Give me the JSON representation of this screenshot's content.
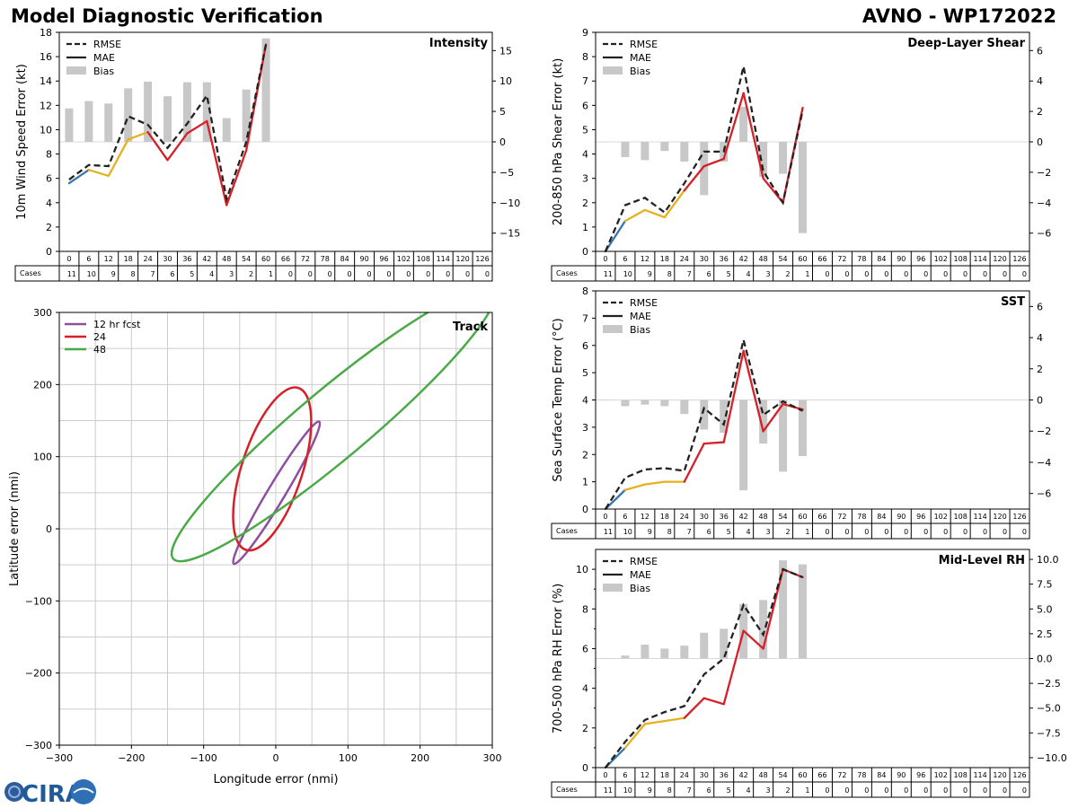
{
  "header": {
    "title": "Model Diagnostic Verification",
    "model_id": "AVNO - WP172022"
  },
  "logo": {
    "text": "CIRA"
  },
  "colors": {
    "blue": "#3777b0",
    "yellow": "#e7b01f",
    "red": "#d62028",
    "rmse": "#222222",
    "bias": "#c8c8c8",
    "purple": "#8e4fa0",
    "green": "#4aaa48",
    "grid": "#cccccc"
  },
  "legend_labels": {
    "rmse": "RMSE",
    "mae": "MAE",
    "bias": "Bias"
  },
  "cases_label": "Cases",
  "forecast_hours": [
    0,
    6,
    12,
    18,
    24,
    30,
    36,
    42,
    48,
    54,
    60,
    66,
    72,
    78,
    84,
    90,
    96,
    102,
    108,
    114,
    120,
    126
  ],
  "cases": [
    11,
    10,
    9,
    8,
    7,
    6,
    5,
    4,
    3,
    2,
    1,
    0,
    0,
    0,
    0,
    0,
    0,
    0,
    0,
    0,
    0,
    0
  ],
  "chart_data": [
    {
      "id": "intensity",
      "type": "line",
      "title": "Intensity",
      "ylabel": "10m Wind Speed Error (kt)",
      "ylim": [
        0,
        18
      ],
      "yticks": [
        0,
        2,
        4,
        6,
        8,
        10,
        12,
        14,
        16,
        18
      ],
      "y2lim": [
        -18,
        18
      ],
      "y2ticks": [
        -15,
        -10,
        -5,
        0,
        5,
        10,
        15
      ],
      "rmse": [
        5.9,
        7.1,
        7.0,
        11.1,
        10.4,
        8.5,
        10.5,
        12.8,
        4.3,
        9.0,
        17.0
      ],
      "mae": [
        5.6,
        6.7,
        6.2,
        9.2,
        9.8,
        7.5,
        9.7,
        10.7,
        3.8,
        8.3,
        17.0
      ],
      "bias": [
        5.5,
        6.7,
        6.3,
        8.8,
        9.9,
        7.5,
        9.8,
        9.8,
        3.9,
        8.6,
        17.0
      ]
    },
    {
      "id": "shear",
      "type": "line",
      "title": "Deep-Layer Shear",
      "ylabel": "200-850 hPa Shear Error (kt)",
      "ylim": [
        0,
        9
      ],
      "yticks": [
        0,
        1,
        2,
        3,
        4,
        5,
        6,
        7,
        8,
        9
      ],
      "y2lim": [
        -7.2,
        7.2
      ],
      "y2ticks": [
        -6,
        -4,
        -2,
        0,
        2,
        4,
        6
      ],
      "rmse": [
        0.0,
        1.9,
        2.2,
        1.6,
        2.8,
        4.1,
        4.1,
        7.6,
        3.3,
        2.0,
        5.8
      ],
      "mae": [
        0.0,
        1.25,
        1.7,
        1.4,
        2.5,
        3.5,
        3.8,
        6.5,
        3.0,
        2.0,
        5.9
      ],
      "bias": [
        0.0,
        -1.0,
        -1.2,
        -0.6,
        -1.3,
        -3.5,
        -1.3,
        2.3,
        -2.3,
        -2.1,
        -6.0
      ]
    },
    {
      "id": "sst",
      "type": "line",
      "title": "SST",
      "ylabel": "Sea Surface Temp Error (°C)",
      "ylim": [
        0,
        8
      ],
      "yticks": [
        0,
        1,
        2,
        3,
        4,
        5,
        6,
        7,
        8
      ],
      "y2lim": [
        -7,
        7
      ],
      "y2ticks": [
        -6,
        -4,
        -2,
        0,
        2,
        4,
        6
      ],
      "rmse": [
        0.0,
        1.15,
        1.45,
        1.5,
        1.4,
        3.7,
        3.1,
        6.2,
        3.45,
        3.95,
        3.6
      ],
      "mae": [
        0.0,
        0.7,
        0.9,
        1.0,
        1.0,
        2.4,
        2.45,
        5.8,
        2.85,
        3.85,
        3.65
      ],
      "bias": [
        0.0,
        -0.4,
        -0.3,
        -0.4,
        -0.9,
        -1.9,
        -2.1,
        -5.8,
        -2.8,
        -4.6,
        -3.6
      ]
    },
    {
      "id": "rh",
      "type": "line",
      "title": "Mid-Level RH",
      "ylabel": "700-500 hPa RH Error (%)",
      "ylim": [
        0,
        11
      ],
      "yticks": [
        0,
        2,
        4,
        6,
        8,
        10
      ],
      "y2lim": [
        -11,
        11
      ],
      "y2ticks": [
        -10,
        -7.5,
        -5,
        -2.5,
        0,
        2.5,
        5,
        7.5,
        10
      ],
      "rmse": [
        0.0,
        1.3,
        2.4,
        2.8,
        3.1,
        4.7,
        5.5,
        8.2,
        6.7,
        10.0,
        9.6
      ],
      "mae": [
        0.0,
        1.0,
        2.2,
        2.35,
        2.5,
        3.5,
        3.2,
        6.9,
        6.0,
        10.0,
        9.6
      ],
      "bias": [
        0.0,
        0.3,
        1.4,
        1.0,
        1.3,
        2.6,
        3.0,
        5.5,
        5.9,
        9.9,
        9.5
      ]
    },
    {
      "id": "track",
      "type": "scatter",
      "title": "Track",
      "xlabel": "Longitude error (nmi)",
      "ylabel": "Latitude error (nmi)",
      "xlim": [
        -300,
        300
      ],
      "ylim": [
        -300,
        300
      ],
      "xticks": [
        -300,
        -200,
        -100,
        0,
        100,
        200,
        300
      ],
      "yticks": [
        -300,
        -200,
        -100,
        0,
        100,
        200,
        300
      ],
      "ellipses": [
        {
          "label": "12 hr fcst",
          "color": "#8e4fa0",
          "cx": 1,
          "cy": 50,
          "rx": 115,
          "ry": 12,
          "angle": 59
        },
        {
          "label": "24",
          "color": "#d62028",
          "cx": -5,
          "cy": 83,
          "rx": 118,
          "ry": 42,
          "angle": 72
        },
        {
          "label": "48",
          "color": "#4aaa48",
          "cx": 80,
          "cy": 145,
          "rx": 290,
          "ry": 48,
          "angle": 40
        }
      ]
    }
  ]
}
